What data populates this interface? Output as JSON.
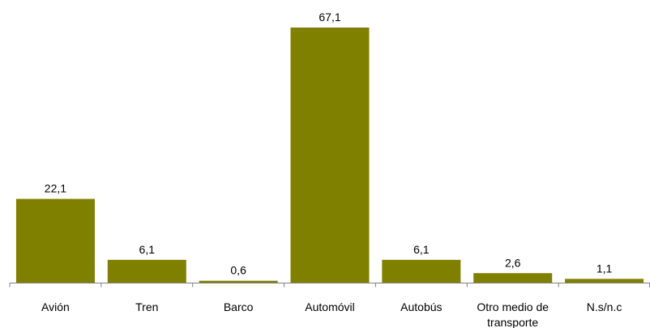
{
  "chart_data": {
    "type": "bar",
    "title": "",
    "xlabel": "",
    "ylabel": "",
    "categories": [
      [
        "Avión"
      ],
      [
        "Tren"
      ],
      [
        "Barco"
      ],
      [
        "Automóvil"
      ],
      [
        "Autobús"
      ],
      [
        "Otro medio de",
        "transporte"
      ],
      [
        "N.s/n.c"
      ]
    ],
    "values": [
      22.1,
      6.1,
      0.6,
      67.1,
      6.1,
      2.6,
      1.1
    ],
    "value_labels": [
      "22,1",
      "6,1",
      "0,6",
      "67,1",
      "6,1",
      "2,6",
      "1,1"
    ],
    "ylim": [
      0,
      67.1
    ],
    "grid": false,
    "legend": "none",
    "colors": {
      "bar": "#808000",
      "axis": "#808080",
      "text": "#000000"
    }
  }
}
